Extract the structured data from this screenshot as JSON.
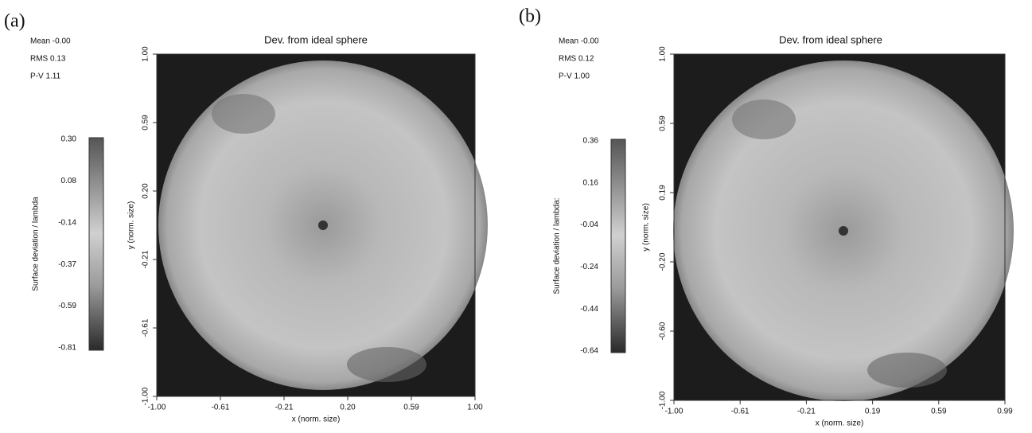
{
  "panels": [
    {
      "label": "(a)",
      "stats": [
        "Mean -0.00",
        "RMS 0.13",
        "P-V 1.11"
      ],
      "title": "Dev. from ideal sphere",
      "colorbar_label": "Surface deviation / lambda",
      "colorbar_ticks": [
        "0.30",
        "0.08",
        "-0.14",
        "-0.37",
        "-0.59",
        "-0.81"
      ],
      "x_label": "x (norm. size)",
      "x_ticks": [
        "-1.00",
        "-0.61",
        "-0.21",
        "0.20",
        "0.59",
        "1.00"
      ],
      "y_label": "y (norm. size)",
      "y_ticks": [
        "1.00",
        "0.59",
        "0.20",
        "-0.21",
        "-0.61",
        "-1.00"
      ]
    },
    {
      "label": "(b)",
      "stats": [
        "Mean -0.00",
        "RMS 0.12",
        "P-V 1.00"
      ],
      "title": "Dev. from ideal sphere",
      "colorbar_label": "Surface deviation / lambda:",
      "colorbar_ticks": [
        "0.36",
        "0.16",
        "-0.04",
        "-0.24",
        "-0.44",
        "-0.64"
      ],
      "x_label": "x (norm. size)",
      "x_ticks": [
        "-1.00",
        "-0.61",
        "-0.21",
        "0.19",
        "0.59",
        "0.99"
      ],
      "y_label": "y (norm. size)",
      "y_ticks": [
        "1.00",
        "0.59",
        "0.19",
        "-0.20",
        "-0.60",
        "-1.00"
      ]
    }
  ]
}
